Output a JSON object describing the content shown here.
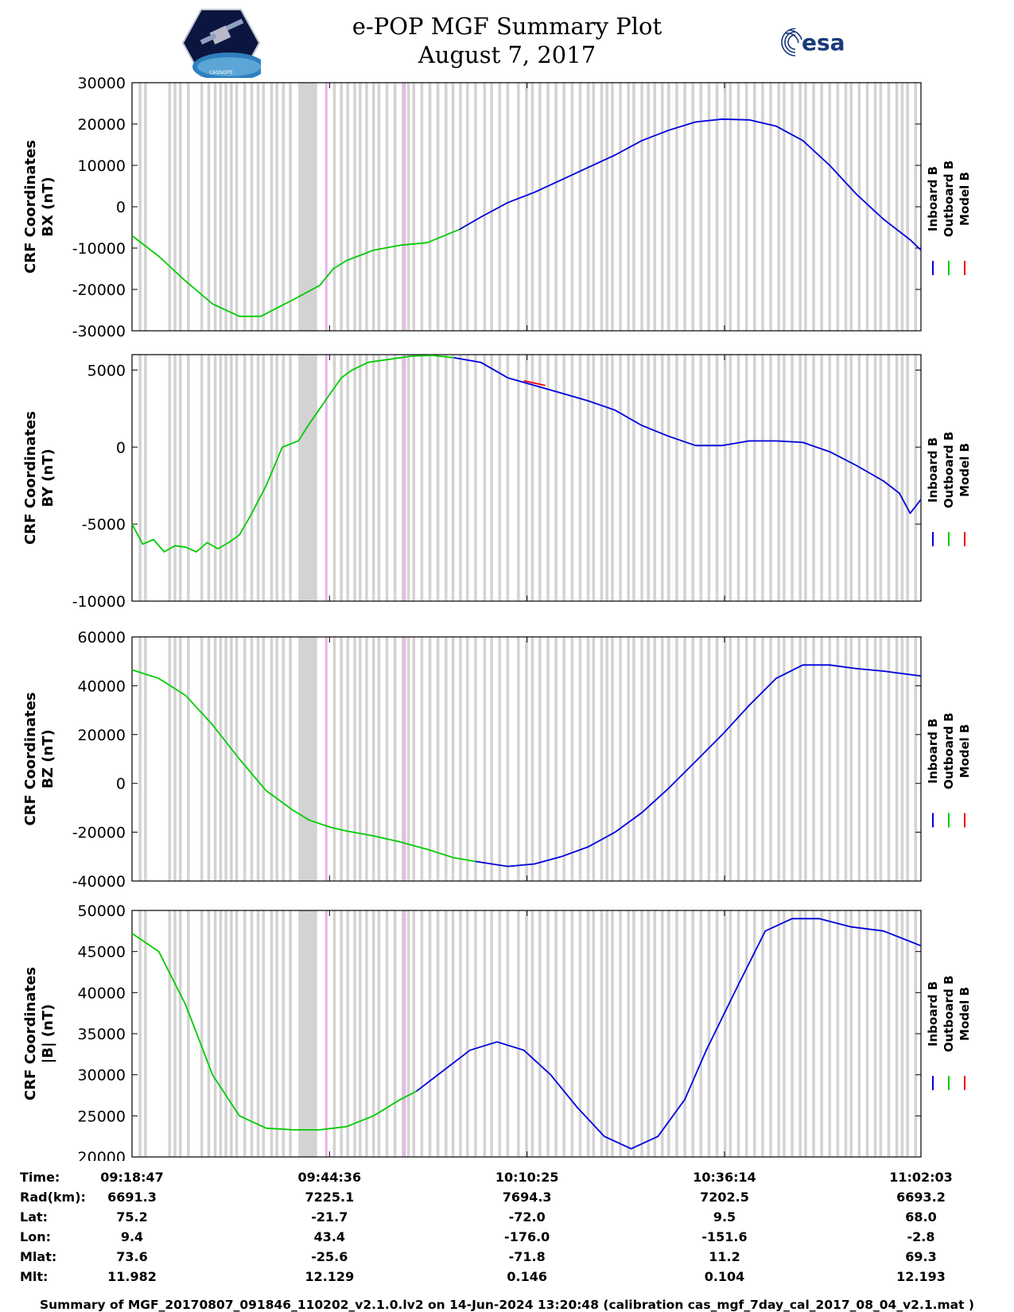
{
  "header": {
    "title": "e-POP MGF Summary Plot",
    "date": "August 7, 2017",
    "logo_right_text": "esa",
    "logo_left_text": "CASSIOPE"
  },
  "colors": {
    "inboard": "#0000dd",
    "outboard": "#00cc00",
    "model": "#ee0000",
    "gap": "#d3d3d3",
    "pink": "#e9b3e9"
  },
  "legend": [
    "Inboard B",
    "Outboard B",
    "Model B"
  ],
  "chart_data": [
    {
      "type": "line",
      "title": "",
      "ylabel": "CRF Coordinates BX (nT)",
      "ylabel_lines": [
        "CRF Coordinates",
        "BX (nT)"
      ],
      "ylim": [
        -30000,
        30000
      ],
      "yticks": [
        30000,
        20000,
        10000,
        0,
        -10000,
        -20000,
        -30000
      ],
      "yticklabels": [
        "30000",
        "20000",
        "10000",
        "0",
        "-10000",
        "-20000",
        "-30000"
      ],
      "series": [
        {
          "name": "Outboard B",
          "x": [
            0,
            5,
            10,
            15,
            20,
            24,
            30,
            35,
            37.5,
            40,
            45,
            50,
            55,
            61
          ],
          "values": [
            -7000,
            -12000,
            -18000,
            -23500,
            -26500,
            -26500,
            -22500,
            -19000,
            -15000,
            -13000,
            -10500,
            -9300,
            -8700,
            -5500
          ]
        },
        {
          "name": "Inboard B",
          "x": [
            61,
            65,
            70,
            75,
            80,
            85,
            90,
            95,
            100,
            105,
            110,
            115,
            120,
            125,
            130,
            135,
            140,
            145,
            147
          ],
          "values": [
            -5500,
            -2500,
            1000,
            3500,
            6500,
            9500,
            12500,
            16000,
            18500,
            20500,
            21200,
            21000,
            19500,
            16000,
            10000,
            3000,
            -3000,
            -8000,
            -10500
          ]
        }
      ]
    },
    {
      "type": "line",
      "title": "",
      "ylabel": "CRF Coordinates BY (nT)",
      "ylabel_lines": [
        "CRF Coordinates",
        "BY (nT)"
      ],
      "ylim": [
        -10000,
        6000
      ],
      "yticks": [
        5000,
        0,
        -5000,
        -10000
      ],
      "yticklabels": [
        "5000",
        "0",
        "-5000",
        "-10000"
      ],
      "series": [
        {
          "name": "Outboard B",
          "x": [
            0,
            2,
            4,
            6,
            8,
            10,
            12,
            14,
            16,
            18,
            20,
            22,
            25,
            28,
            31,
            33,
            35,
            37,
            39,
            41,
            44,
            48,
            52,
            56,
            60
          ],
          "values": [
            -5000,
            -6300,
            -6000,
            -6800,
            -6400,
            -6500,
            -6800,
            -6200,
            -6600,
            -6200,
            -5700,
            -4500,
            -2500,
            0,
            400,
            1500,
            2500,
            3500,
            4500,
            5000,
            5500,
            5700,
            5900,
            5950,
            5800
          ]
        },
        {
          "name": "Inboard B",
          "x": [
            60,
            65,
            70,
            75,
            80,
            85,
            90,
            95,
            100,
            105,
            110,
            115,
            120,
            125,
            130,
            135,
            140,
            143,
            145,
            147
          ],
          "values": [
            5800,
            5500,
            4500,
            4000,
            3500,
            3000,
            2400,
            1400,
            700,
            100,
            100,
            400,
            400,
            300,
            -300,
            -1200,
            -2200,
            -3000,
            -4300,
            -3400
          ]
        },
        {
          "name": "Model B",
          "x": [
            73,
            77
          ],
          "values": [
            4300,
            4000
          ]
        }
      ]
    },
    {
      "type": "line",
      "title": "",
      "ylabel": "CRF Coordinates BZ (nT)",
      "ylabel_lines": [
        "CRF Coordinates",
        "BZ (nT)"
      ],
      "ylim": [
        -40000,
        60000
      ],
      "yticks": [
        60000,
        40000,
        20000,
        0,
        -20000,
        -40000
      ],
      "yticklabels": [
        "60000",
        "40000",
        "20000",
        "0",
        "-20000",
        "-40000"
      ],
      "series": [
        {
          "name": "Outboard B",
          "x": [
            0,
            5,
            10,
            15,
            20,
            25,
            30,
            33,
            37,
            40,
            45,
            50,
            55,
            60,
            64
          ],
          "values": [
            46500,
            43000,
            36000,
            24000,
            10000,
            -3000,
            -11000,
            -15000,
            -18000,
            -19500,
            -21500,
            -24000,
            -27000,
            -30500,
            -32000
          ]
        },
        {
          "name": "Inboard B",
          "x": [
            64,
            70,
            75,
            80,
            85,
            90,
            95,
            100,
            105,
            110,
            115,
            120,
            125,
            130,
            135,
            140,
            147
          ],
          "values": [
            -32000,
            -34000,
            -33000,
            -30000,
            -26000,
            -20000,
            -12000,
            -2000,
            9000,
            20000,
            32000,
            43000,
            48500,
            48500,
            47000,
            46000,
            44000
          ]
        }
      ]
    },
    {
      "type": "line",
      "title": "",
      "ylabel": "CRF Coordinates |B| (nT)",
      "ylabel_lines": [
        "CRF Coordinates",
        "|B| (nT)"
      ],
      "ylim": [
        20000,
        50000
      ],
      "yticks": [
        50000,
        45000,
        40000,
        35000,
        30000,
        25000,
        20000
      ],
      "yticklabels": [
        "50000",
        "45000",
        "40000",
        "35000",
        "30000",
        "25000",
        "20000"
      ],
      "series": [
        {
          "name": "Outboard B",
          "x": [
            0,
            5,
            10,
            15,
            20,
            25,
            30,
            35,
            40,
            45,
            50,
            53
          ],
          "values": [
            47200,
            45000,
            38500,
            30000,
            25000,
            23500,
            23300,
            23300,
            23700,
            25000,
            27000,
            28000
          ]
        },
        {
          "name": "Inboard B",
          "x": [
            53,
            58,
            63,
            68,
            73,
            78,
            83,
            88,
            93,
            98,
            103,
            107,
            113,
            118,
            123,
            128,
            134,
            140,
            147
          ],
          "values": [
            28000,
            30500,
            33000,
            34000,
            33000,
            30000,
            26000,
            22500,
            21000,
            22500,
            27000,
            33000,
            41000,
            47500,
            49000,
            49000,
            48000,
            47500,
            45700
          ]
        }
      ]
    }
  ],
  "gap_bands": {
    "thin_positions": [
      1.5,
      2.5,
      7,
      8,
      9,
      10.5,
      13,
      14.3,
      15.5,
      16.5,
      17.5,
      18.5,
      19.5,
      21,
      22.3,
      23.5,
      24.5,
      26,
      27,
      28.2,
      29.5,
      37.7,
      39,
      40.2,
      41.5,
      42.5,
      43.7,
      45,
      46,
      47.5,
      49,
      50.5,
      51.5,
      52.5,
      54,
      55.5,
      57,
      58.5,
      59.8,
      61.2,
      62.5,
      64,
      65.7,
      67,
      68.5,
      70,
      72,
      73.5,
      74.6,
      76,
      77.5,
      79,
      80.5,
      82,
      83.5,
      85,
      86,
      87.5,
      88.5,
      89.5,
      91,
      92.5,
      93.5,
      95,
      96.2,
      97.4,
      98.8,
      100,
      101.5,
      103,
      104.5,
      106,
      107.5,
      109,
      110.5,
      111.5,
      113,
      114.5,
      116,
      117.5,
      119,
      120.5,
      121.5,
      123,
      124.5,
      125.5,
      127,
      128.5,
      130,
      131.5,
      133,
      134,
      135.5,
      137,
      138.5,
      139.5,
      141,
      142.5,
      143.5,
      144.5,
      146
    ],
    "wide_ranges": [
      [
        31,
        34.5
      ]
    ],
    "pink_positions": [
      36.2,
      50.8
    ]
  },
  "x_axis": {
    "xlim": [
      0,
      147
    ],
    "tick_positions": [
      0,
      36.8,
      73.6,
      110.4,
      147
    ]
  },
  "info_table": {
    "rows": [
      {
        "label": "Time:",
        "values": [
          "09:18:47",
          "09:44:36",
          "10:10:25",
          "10:36:14",
          "11:02:03"
        ]
      },
      {
        "label": "Rad(km):",
        "values": [
          "6691.3",
          "7225.1",
          "7694.3",
          "7202.5",
          "6693.2"
        ]
      },
      {
        "label": "Lat:",
        "values": [
          "75.2",
          "-21.7",
          "-72.0",
          "9.5",
          "68.0"
        ]
      },
      {
        "label": "Lon:",
        "values": [
          "9.4",
          "43.4",
          "-176.0",
          "-151.6",
          "-2.8"
        ]
      },
      {
        "label": "Mlat:",
        "values": [
          "73.6",
          "-25.6",
          "-71.8",
          "11.2",
          "69.3"
        ]
      },
      {
        "label": "Mlt:",
        "values": [
          "11.982",
          "12.129",
          "0.146",
          "0.104",
          "12.193"
        ]
      }
    ]
  },
  "footer": "Summary of MGF_20170807_091846_110202_v2.1.0.lv2 on 14-Jun-2024 13:20:48 (calibration cas_mgf_7day_cal_2017_08_04_v2.1.mat )"
}
